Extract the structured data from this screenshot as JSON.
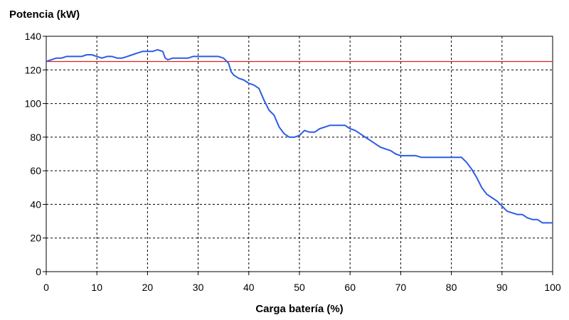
{
  "chart_data": {
    "type": "line",
    "title": "",
    "ylabel": "Potencia (kW)",
    "xlabel": "Carga batería (%)",
    "xlim": [
      0,
      100
    ],
    "ylim": [
      0,
      140
    ],
    "x_ticks": [
      0,
      10,
      20,
      30,
      40,
      50,
      60,
      70,
      80,
      90,
      100
    ],
    "y_ticks": [
      0,
      20,
      40,
      60,
      80,
      100,
      120,
      140
    ],
    "grid": true,
    "reference_line": {
      "y": 125,
      "color": "#e0201c"
    },
    "series": [
      {
        "color": "#2b5ce6",
        "x": [
          0,
          1,
          2,
          3,
          4,
          5,
          6,
          7,
          8,
          9,
          10,
          11,
          12,
          13,
          14,
          15,
          16,
          17,
          18,
          19,
          20,
          21,
          22,
          23,
          23.5,
          24,
          25,
          26,
          27,
          28,
          29,
          30,
          31,
          32,
          33,
          34,
          35,
          36,
          36.5,
          37,
          38,
          39,
          40,
          41,
          42,
          43,
          44,
          45,
          46,
          47,
          48,
          49,
          50,
          51,
          52,
          53,
          54,
          55,
          56,
          57,
          58,
          59,
          60,
          61,
          62,
          63,
          64,
          65,
          66,
          67,
          68,
          69,
          70,
          71,
          72,
          73,
          74,
          75,
          76,
          77,
          78,
          79,
          80,
          81,
          82,
          83,
          84,
          85,
          86,
          87,
          88,
          89,
          90,
          91,
          92,
          93,
          94,
          95,
          96,
          97,
          98,
          99,
          100
        ],
        "y": [
          125,
          126,
          127,
          127,
          128,
          128,
          128,
          128,
          129,
          129,
          128,
          127,
          128,
          128,
          127,
          127,
          128,
          129,
          130,
          131,
          131,
          131,
          132,
          131,
          127,
          126,
          127,
          127,
          127,
          127,
          128,
          128,
          128,
          128,
          128,
          128,
          127,
          124,
          119,
          117,
          115,
          114,
          112,
          111,
          109,
          102,
          96,
          93,
          86,
          82,
          80,
          80,
          81,
          84,
          83,
          83,
          85,
          86,
          87,
          87,
          87,
          87,
          85,
          84,
          82,
          80,
          78,
          76,
          74,
          73,
          72,
          70,
          69,
          69,
          69,
          69,
          68,
          68,
          68,
          68,
          68,
          68,
          68,
          68,
          68,
          65,
          61,
          56,
          50,
          46,
          44,
          42,
          39,
          36,
          35,
          34,
          34,
          32,
          31,
          31,
          29,
          29,
          29
        ]
      }
    ]
  }
}
